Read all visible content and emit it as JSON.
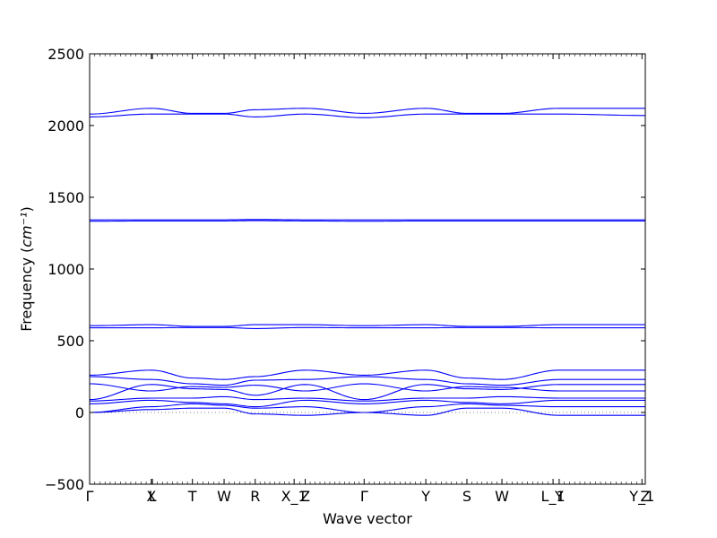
{
  "chart_data": {
    "type": "line",
    "title": "",
    "xlabel": "Wave vector",
    "ylabel": "Frequency",
    "ylabel_unit": "cm⁻¹",
    "ylim": [
      -500,
      2500
    ],
    "yticks": [
      -500,
      0,
      500,
      1000,
      1500,
      2000,
      2500
    ],
    "x_range": [
      0,
      1
    ],
    "grid": false,
    "legend": "none",
    "line_color": "#0000ff",
    "high_symmetry_points": [
      {
        "label": "Γ",
        "x": 0.0
      },
      {
        "label": "X",
        "x": 0.111
      },
      {
        "label": "L",
        "x": 0.113
      },
      {
        "label": "T",
        "x": 0.185
      },
      {
        "label": "W",
        "x": 0.242
      },
      {
        "label": "R",
        "x": 0.298
      },
      {
        "label": "X_1",
        "x": 0.368
      },
      {
        "label": "Z",
        "x": 0.388
      },
      {
        "label": "Γ",
        "x": 0.494
      },
      {
        "label": "Y",
        "x": 0.605
      },
      {
        "label": "S",
        "x": 0.679
      },
      {
        "label": "W",
        "x": 0.742
      },
      {
        "label": "L_1",
        "x": 0.834
      },
      {
        "label": "Y",
        "x": 0.845
      },
      {
        "label": "Y_1",
        "x": 0.994
      },
      {
        "label": "Z",
        "x": 1.0
      }
    ],
    "series": [
      {
        "x": [
          0,
          0.111,
          0.185,
          0.242,
          0.298,
          0.388,
          0.494,
          0.605,
          0.679,
          0.742,
          0.845,
          1.0
        ],
        "values": [
          2080,
          2120,
          2085,
          2085,
          2110,
          2120,
          2085,
          2120,
          2085,
          2085,
          2120,
          2120
        ]
      },
      {
        "x": [
          0,
          0.111,
          0.185,
          0.242,
          0.298,
          0.388,
          0.494,
          0.605,
          0.679,
          0.742,
          0.845,
          1.0
        ],
        "values": [
          2060,
          2080,
          2080,
          2080,
          2060,
          2080,
          2055,
          2080,
          2080,
          2080,
          2080,
          2070
        ]
      },
      {
        "x": [
          0,
          0.111,
          0.185,
          0.242,
          0.298,
          0.388,
          0.494,
          0.605,
          0.679,
          0.742,
          0.845,
          1.0
        ],
        "values": [
          1343,
          1343,
          1343,
          1343,
          1345,
          1343,
          1343,
          1343,
          1343,
          1343,
          1343,
          1343
        ]
      },
      {
        "x": [
          0,
          0.111,
          0.185,
          0.242,
          0.298,
          0.388,
          0.494,
          0.605,
          0.679,
          0.742,
          0.845,
          1.0
        ],
        "values": [
          1333,
          1335,
          1335,
          1335,
          1337,
          1335,
          1333,
          1335,
          1335,
          1335,
          1335,
          1335
        ]
      },
      {
        "x": [
          0,
          0.111,
          0.185,
          0.242,
          0.298,
          0.388,
          0.494,
          0.605,
          0.679,
          0.742,
          0.845,
          1.0
        ],
        "values": [
          605,
          612,
          600,
          600,
          612,
          612,
          605,
          612,
          600,
          600,
          612,
          612
        ]
      },
      {
        "x": [
          0,
          0.111,
          0.185,
          0.242,
          0.298,
          0.388,
          0.494,
          0.605,
          0.679,
          0.742,
          0.845,
          1.0
        ],
        "values": [
          590,
          590,
          592,
          592,
          585,
          592,
          590,
          590,
          592,
          592,
          590,
          590
        ]
      },
      {
        "x": [
          0,
          0.111,
          0.185,
          0.242,
          0.298,
          0.388,
          0.494,
          0.605,
          0.679,
          0.742,
          0.845,
          1.0
        ],
        "values": [
          260,
          295,
          240,
          230,
          250,
          295,
          260,
          295,
          240,
          230,
          295,
          295
        ]
      },
      {
        "x": [
          0,
          0.111,
          0.185,
          0.242,
          0.298,
          0.388,
          0.494,
          0.605,
          0.679,
          0.742,
          0.845,
          1.0
        ],
        "values": [
          250,
          230,
          200,
          190,
          225,
          230,
          250,
          230,
          200,
          190,
          230,
          230
        ]
      },
      {
        "x": [
          0,
          0.111,
          0.185,
          0.242,
          0.298,
          0.388,
          0.494,
          0.605,
          0.679,
          0.742,
          0.845,
          1.0
        ],
        "values": [
          200,
          150,
          180,
          175,
          190,
          150,
          200,
          150,
          180,
          175,
          150,
          150
        ]
      },
      {
        "x": [
          0,
          0.111,
          0.185,
          0.242,
          0.298,
          0.388,
          0.494,
          0.605,
          0.679,
          0.742,
          0.845,
          1.0
        ],
        "values": [
          90,
          195,
          165,
          160,
          120,
          195,
          90,
          195,
          165,
          160,
          195,
          195
        ]
      },
      {
        "x": [
          0,
          0.111,
          0.185,
          0.242,
          0.298,
          0.388,
          0.494,
          0.605,
          0.679,
          0.742,
          0.845,
          1.0
        ],
        "values": [
          80,
          100,
          100,
          110,
          90,
          100,
          80,
          100,
          100,
          110,
          100,
          100
        ]
      },
      {
        "x": [
          0,
          0.111,
          0.185,
          0.242,
          0.298,
          0.388,
          0.494,
          0.605,
          0.679,
          0.742,
          0.845,
          1.0
        ],
        "values": [
          60,
          85,
          70,
          60,
          40,
          85,
          60,
          85,
          70,
          60,
          85,
          85
        ]
      },
      {
        "x": [
          0,
          0.111,
          0.185,
          0.242,
          0.298,
          0.388,
          0.494,
          0.605,
          0.679,
          0.742,
          0.845,
          1.0
        ],
        "values": [
          0,
          40,
          60,
          50,
          30,
          40,
          0,
          40,
          60,
          50,
          40,
          40
        ]
      },
      {
        "x": [
          0,
          0.111,
          0.185,
          0.242,
          0.298,
          0.388,
          0.494,
          0.605,
          0.679,
          0.742,
          0.845,
          1.0
        ],
        "values": [
          0,
          20,
          30,
          30,
          -10,
          -20,
          0,
          -20,
          30,
          30,
          -20,
          -20
        ]
      }
    ]
  }
}
